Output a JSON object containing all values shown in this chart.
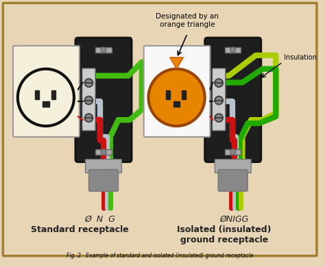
{
  "bg_color": "#e8d5b5",
  "border_color": "#a08030",
  "wire_red": "#cc1111",
  "wire_green": "#44bb11",
  "wire_green_dark": "#22aa00",
  "wire_grey": "#b8c0cc",
  "wire_yellow_green": "#aacc00",
  "outlet_face_std": "#f5f0dc",
  "outlet_face_iso": "#e88500",
  "outlet_ring_std": "#111111",
  "outlet_ring_iso": "#994400",
  "box_fill": "#1a1a1a",
  "box_inner": "#2a2020",
  "screw_face": "#888888",
  "screw_edge": "#444444",
  "conduit_top": "#aaaaaa",
  "conduit_bot": "#888888",
  "triangle_color": "#e88500",
  "label_std": "Standard receptacle",
  "label_iso": "Isolated (insulated)\nground receptacle",
  "label_phi_n_g": "Ø  N  G",
  "label_phi_n_g_g": "ØNIGG",
  "label_designated": "Designated by an\norange triangle",
  "label_insulation": "Insulation",
  "caption": "Fig. 2.  Example of standard and isolated (insulated) ground receptacle"
}
